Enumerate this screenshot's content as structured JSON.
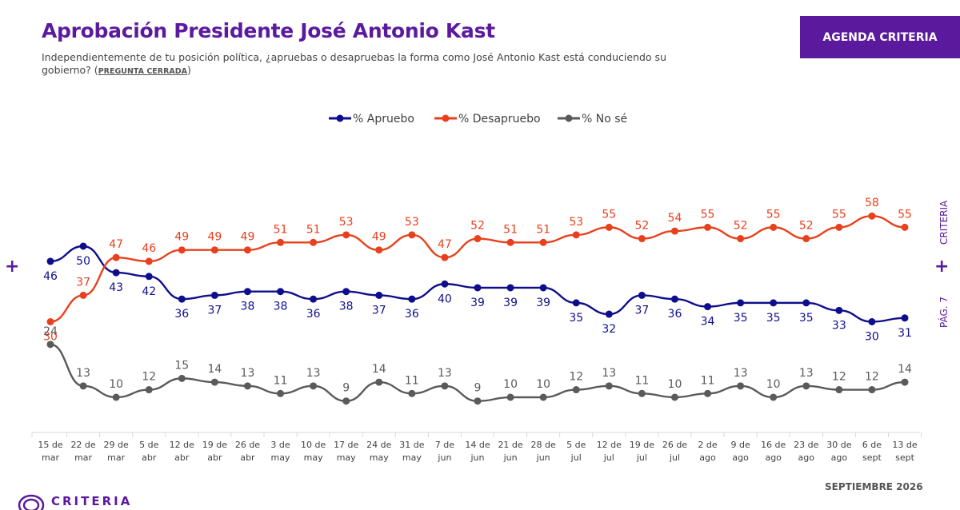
{
  "header": {
    "title": "Aprobación Presidente José Antonio Kast",
    "subtitle": "Independientemente de tu posición política, ¿apruebas o desapruebas la forma como José Antonio Kast está conduciendo su gobierno?",
    "subtitle_note": "PREGUNTA CERRADA",
    "badge": "AGENDA CRITERIA"
  },
  "side_labels": {
    "brand": "CRITERIA",
    "page": "PÁG. 7",
    "plus": "+"
  },
  "footer": {
    "date": "SEPTIEMBRE 2026",
    "logo_text": "CRITERIA"
  },
  "colors": {
    "aprueba": "#0e0e8c",
    "desaprueba": "#e8401c",
    "nose": "#5a5a5a",
    "accent": "#5b1a9e"
  },
  "chart_data": {
    "type": "line",
    "categories": [
      [
        "15 de",
        "mar"
      ],
      [
        "22 de",
        "mar"
      ],
      [
        "29 de",
        "mar"
      ],
      [
        "5 de",
        "abr"
      ],
      [
        "12 de",
        "abr"
      ],
      [
        "19 de",
        "abr"
      ],
      [
        "26 de",
        "abr"
      ],
      [
        "3 de",
        "may"
      ],
      [
        "10 de",
        "may"
      ],
      [
        "17 de",
        "may"
      ],
      [
        "24 de",
        "may"
      ],
      [
        "31 de",
        "may"
      ],
      [
        "7 de",
        "jun"
      ],
      [
        "14 de",
        "jun"
      ],
      [
        "21 de",
        "jun"
      ],
      [
        "28 de",
        "jun"
      ],
      [
        "5 de",
        "jul"
      ],
      [
        "12 de",
        "jul"
      ],
      [
        "19 de",
        "jul"
      ],
      [
        "26 de",
        "jul"
      ],
      [
        "2 de",
        "ago"
      ],
      [
        "9 de",
        "ago"
      ],
      [
        "16 de",
        "ago"
      ],
      [
        "23 de",
        "ago"
      ],
      [
        "30 de",
        "ago"
      ],
      [
        "6 de",
        "sept"
      ],
      [
        "13 de",
        "sept"
      ]
    ],
    "series": [
      {
        "name": "% Apruebo",
        "key": "aprueba",
        "label_pos": [
          "below",
          "below",
          "below",
          "below",
          "below",
          "below",
          "below",
          "below",
          "below",
          "below",
          "below",
          "below",
          "below",
          "below",
          "below",
          "below",
          "below",
          "below",
          "below",
          "below",
          "below",
          "below",
          "below",
          "below",
          "below",
          "below",
          "below"
        ],
        "values": [
          46,
          50,
          43,
          42,
          36,
          37,
          38,
          38,
          36,
          38,
          37,
          36,
          40,
          39,
          39,
          39,
          35,
          32,
          37,
          36,
          34,
          35,
          35,
          35,
          33,
          30,
          31
        ]
      },
      {
        "name": "% Desapruebo",
        "key": "desaprueba",
        "label_pos": [
          "below",
          "above",
          "above",
          "above",
          "above",
          "above",
          "above",
          "above",
          "above",
          "above",
          "above",
          "above",
          "above",
          "above",
          "above",
          "above",
          "above",
          "above",
          "above",
          "above",
          "above",
          "above",
          "above",
          "above",
          "above",
          "above",
          "above"
        ],
        "values": [
          30,
          37,
          47,
          46,
          49,
          49,
          49,
          51,
          51,
          53,
          49,
          53,
          47,
          52,
          51,
          51,
          53,
          55,
          52,
          54,
          55,
          52,
          55,
          52,
          55,
          58,
          55
        ]
      },
      {
        "name": "% No sé",
        "key": "nose",
        "label_pos": [
          "above",
          "above",
          "above",
          "above",
          "above",
          "above",
          "above",
          "above",
          "above",
          "above",
          "above",
          "above",
          "above",
          "above",
          "above",
          "above",
          "above",
          "above",
          "above",
          "above",
          "above",
          "above",
          "above",
          "above",
          "above",
          "above",
          "above"
        ],
        "values": [
          24,
          13,
          10,
          12,
          15,
          14,
          13,
          11,
          13,
          9,
          14,
          11,
          13,
          9,
          10,
          10,
          12,
          13,
          11,
          10,
          11,
          13,
          10,
          13,
          12,
          12,
          14
        ]
      }
    ],
    "legend_position": "top-center",
    "grid": false,
    "ylim": [
      0,
      80
    ]
  }
}
